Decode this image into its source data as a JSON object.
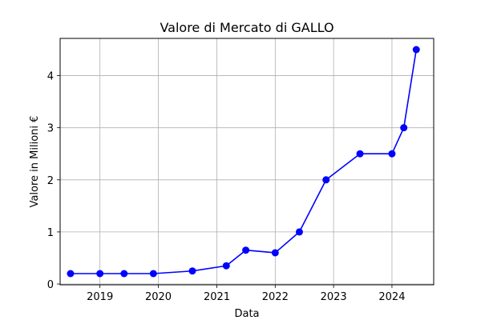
{
  "chart_data": {
    "type": "line",
    "title": "Valore di Mercato di GALLO",
    "xlabel": "Data",
    "ylabel": "Valore in Milioni €",
    "x_tick_labels": [
      "2019",
      "2020",
      "2021",
      "2022",
      "2023",
      "2024"
    ],
    "y_ticks": [
      0,
      1,
      2,
      3,
      4
    ],
    "xlim": [
      "2018-04-27",
      "2024-09-18"
    ],
    "ylim": [
      -0.015,
      4.715
    ],
    "grid": true,
    "series": [
      {
        "name": "",
        "color": "#0000ff",
        "marker": "circle",
        "x": [
          "2018-07-01",
          "2019-01-01",
          "2019-06-01",
          "2019-12-01",
          "2020-08-01",
          "2021-03-01",
          "2021-07-01",
          "2022-01-01",
          "2022-06-01",
          "2022-11-15",
          "2023-06-15",
          "2024-01-01",
          "2024-03-15",
          "2024-06-01"
        ],
        "y": [
          0.2,
          0.2,
          0.2,
          0.2,
          0.25,
          0.35,
          0.65,
          0.6,
          1.0,
          2.0,
          2.5,
          2.5,
          3.0,
          4.5
        ]
      }
    ]
  }
}
